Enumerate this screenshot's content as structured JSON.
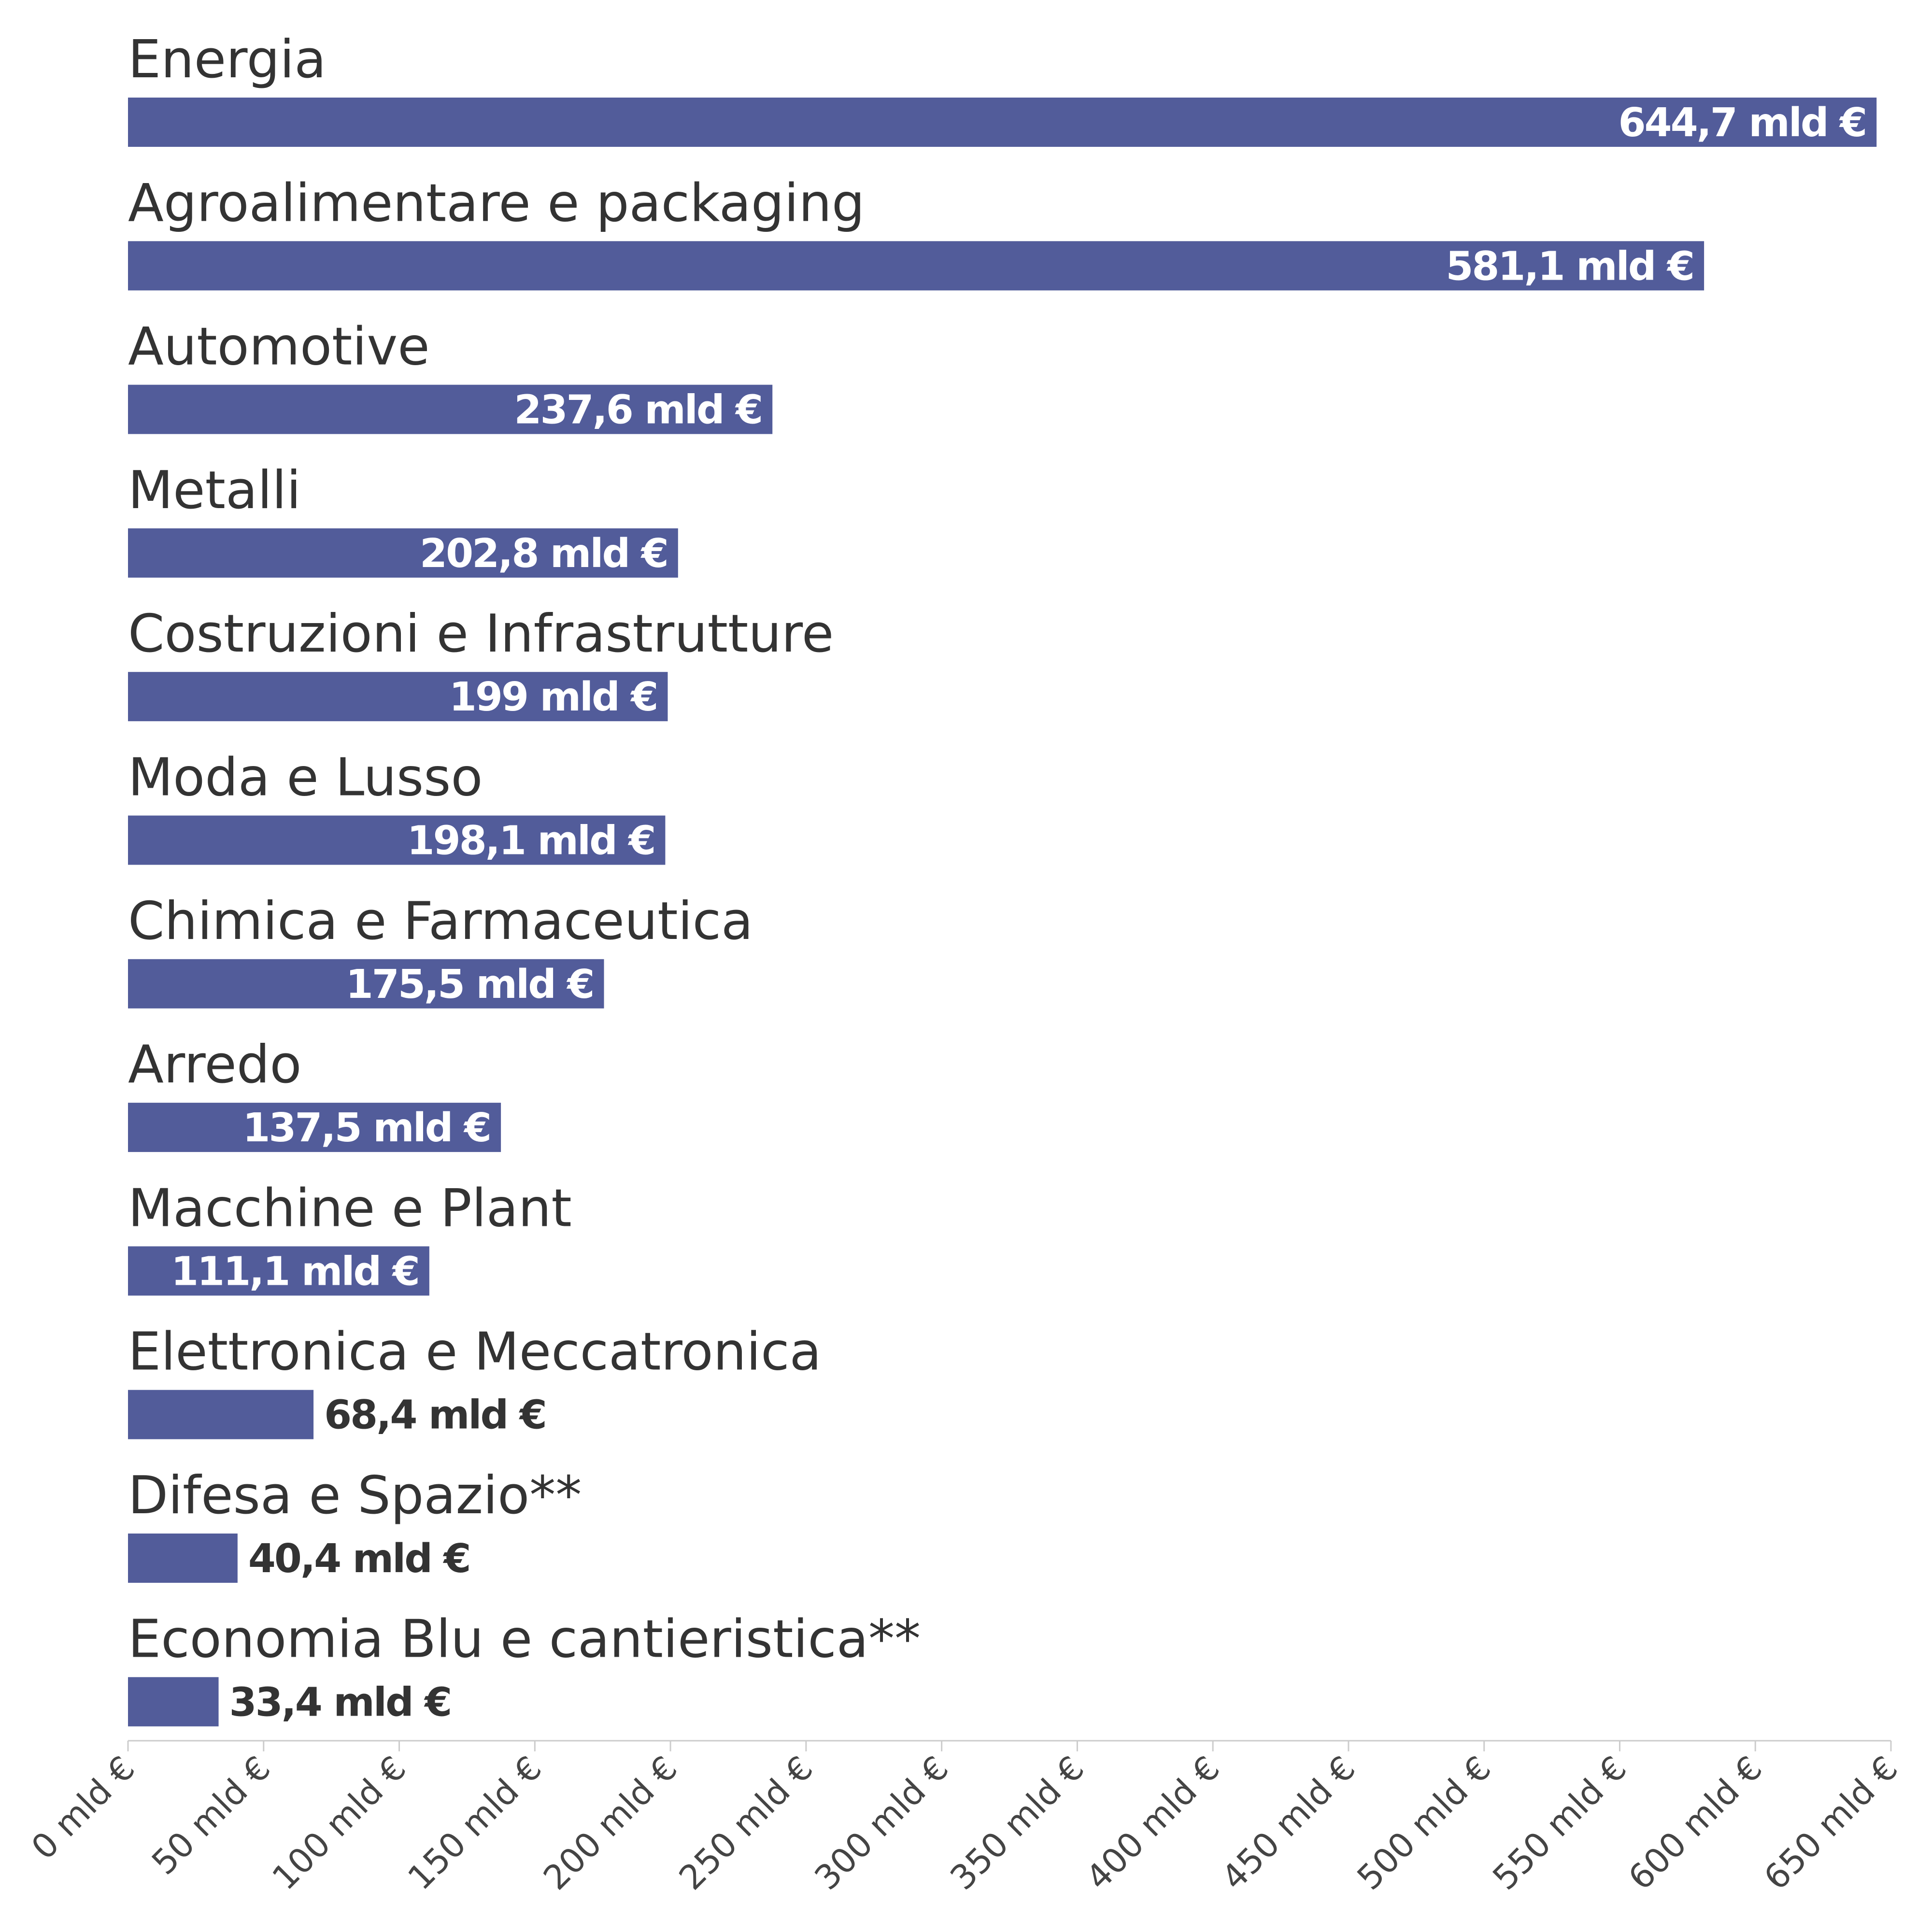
{
  "chart_data": {
    "type": "bar",
    "orientation": "horizontal",
    "categories": [
      "Energia",
      "Agroalimentare e packaging",
      "Automotive",
      "Metalli",
      "Costruzioni e Infrastrutture",
      "Moda e Lusso",
      "Chimica e Farmaceutica",
      "Arredo",
      "Macchine e Plant",
      "Elettronica e Meccatronica",
      "Difesa e Spazio**",
      "Economia Blu e cantieristica**"
    ],
    "values": [
      644.7,
      581.1,
      237.6,
      202.8,
      199,
      198.1,
      175.5,
      137.5,
      111.1,
      68.4,
      40.4,
      33.4
    ],
    "value_labels": [
      "644,7 mld €",
      "581,1 mld €",
      "237,6 mld €",
      "202,8 mld €",
      "199 mld €",
      "198,1 mld €",
      "175,5 mld €",
      "137,5 mld €",
      "111,1 mld €",
      "68,4 mld €",
      "40,4 mld €",
      "33,4 mld €"
    ],
    "x_ticks": [
      0,
      50,
      100,
      150,
      200,
      250,
      300,
      350,
      400,
      450,
      500,
      550,
      600,
      650
    ],
    "x_tick_labels": [
      "0 mld €",
      "50 mld €",
      "100 mld €",
      "150 mld €",
      "200 mld €",
      "250 mld €",
      "300 mld €",
      "350 mld €",
      "400 mld €",
      "450 mld €",
      "500 mld €",
      "550 mld €",
      "600 mld €",
      "650 mld €"
    ],
    "xlim": [
      0,
      650
    ],
    "title": "",
    "xlabel": "",
    "ylabel": "",
    "grid": false,
    "legend": "none",
    "colors": {
      "bar": "#525c9a",
      "label_inside": "#ffffff",
      "label_outside": "#333333",
      "category_text": "#333333",
      "axis": "#cccccc"
    }
  }
}
